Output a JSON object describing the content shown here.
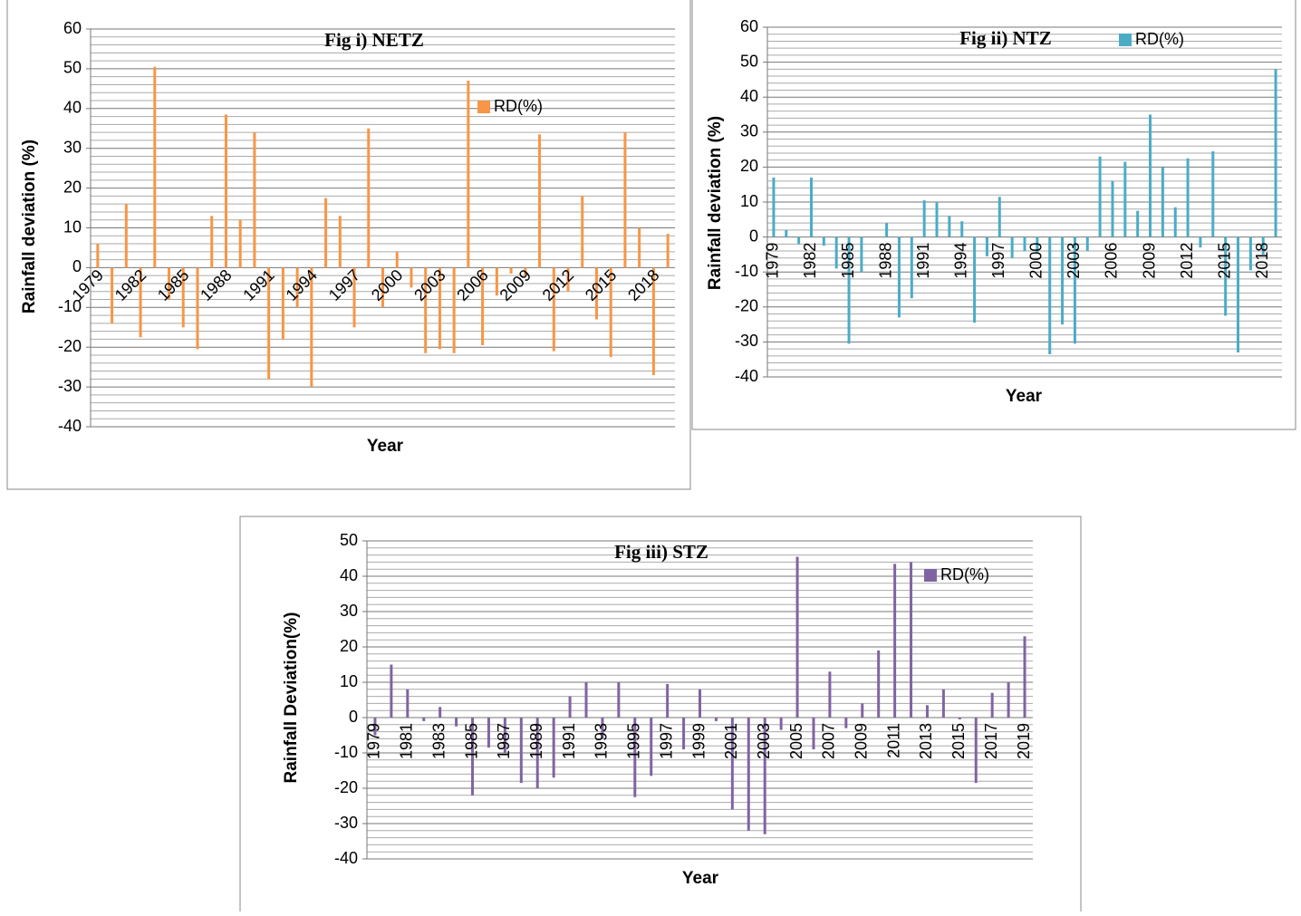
{
  "chart_data": [
    {
      "type": "bar",
      "title": "Fig i)  NETZ",
      "y_label": "Rainfall deviation (%)",
      "x_label": "Year",
      "categories": [
        "1979",
        null,
        null,
        "1982",
        null,
        null,
        "1985",
        null,
        null,
        "1988",
        null,
        null,
        "1991",
        null,
        null,
        "1994",
        null,
        null,
        "1997",
        null,
        null,
        "2000",
        null,
        null,
        "2003",
        null,
        null,
        "2006",
        null,
        null,
        "2009",
        null,
        null,
        "2012",
        null,
        null,
        "2015",
        null,
        null,
        "2018",
        null
      ],
      "series": [
        {
          "name": "RD(%)",
          "color": "#f79646",
          "values": [
            6,
            -14,
            16,
            -17.5,
            50.5,
            -8,
            -15,
            -20.5,
            13,
            38.5,
            12,
            34,
            -28,
            -18,
            -10,
            -30,
            17.5,
            13,
            -15,
            35,
            -10,
            4,
            -5,
            -21.5,
            -20.5,
            -21.5,
            47,
            -19.5,
            -7,
            -1.5,
            -2,
            33.5,
            -21,
            -6,
            18,
            -13,
            -22.5,
            34,
            10,
            -27,
            8.5
          ]
        }
      ],
      "ylim": [
        -40,
        60
      ],
      "yticks": [
        -40,
        -30,
        -20,
        -10,
        0,
        10,
        20,
        30,
        40,
        50,
        60
      ],
      "grid": true,
      "minor_grid": true
    },
    {
      "type": "bar",
      "title": "Fig ii) NTZ",
      "y_label": "Rainfall deviation (%)",
      "x_label": "Year",
      "categories": [
        "1979",
        null,
        null,
        "1982",
        null,
        null,
        "1985",
        null,
        null,
        "1988",
        null,
        null,
        "1991",
        null,
        null,
        "1994",
        null,
        null,
        "1997",
        null,
        null,
        "2000",
        null,
        null,
        "2003",
        null,
        null,
        "2006",
        null,
        null,
        "2009",
        null,
        null,
        "2012",
        null,
        null,
        "2015",
        null,
        null,
        "2018",
        null
      ],
      "series": [
        {
          "name": "RD(%)",
          "color": "#4bacc6",
          "values": [
            17,
            2,
            -2,
            17,
            -2.5,
            -9,
            -30.5,
            -10,
            0,
            4,
            -23,
            -17.5,
            10.5,
            10,
            6,
            4.5,
            -24.5,
            -5.5,
            11.5,
            -6,
            -4,
            -4.5,
            -33.5,
            -25,
            -30.5,
            -4,
            23,
            16,
            21.5,
            7.5,
            35,
            20,
            8.5,
            22.5,
            -3,
            24.5,
            -22.5,
            -33,
            -9.5,
            -5,
            48
          ]
        }
      ],
      "ylim": [
        -40,
        60
      ],
      "yticks": [
        -40,
        -30,
        -20,
        -10,
        0,
        10,
        20,
        30,
        40,
        50,
        60
      ],
      "grid": true,
      "minor_grid": true
    },
    {
      "type": "bar",
      "title": "Fig iii) STZ",
      "y_label": "Rainfall Deviation(%)",
      "x_label": "Year",
      "categories": [
        "1979",
        null,
        "1981",
        null,
        "1983",
        null,
        "1985",
        null,
        "1987",
        null,
        "1989",
        null,
        "1991",
        null,
        "1993",
        null,
        "1995",
        null,
        "1997",
        null,
        "1999",
        null,
        "2001",
        null,
        "2003",
        null,
        "2005",
        null,
        "2007",
        null,
        "2009",
        null,
        "2011",
        null,
        "2013",
        null,
        "2015",
        null,
        "2017",
        null,
        "2019"
      ],
      "series": [
        {
          "name": "RD(%)",
          "color": "#8064a2",
          "values": [
            -5,
            15,
            8,
            -1,
            3,
            -2.5,
            -22,
            -8.5,
            -10,
            -18.5,
            -20,
            -17,
            6,
            10,
            -6,
            10,
            -22.5,
            -16.5,
            9.5,
            -9,
            8,
            -1,
            -26,
            -32,
            -33,
            -3.5,
            45.5,
            -9,
            13,
            -3,
            4,
            19,
            43.5,
            44,
            3.5,
            8,
            -0.5,
            -18.5,
            7,
            10,
            23
          ]
        }
      ],
      "ylim": [
        -40,
        50
      ],
      "yticks": [
        -40,
        -30,
        -20,
        -10,
        0,
        10,
        20,
        30,
        40,
        50
      ],
      "grid": true,
      "minor_grid": true
    }
  ]
}
